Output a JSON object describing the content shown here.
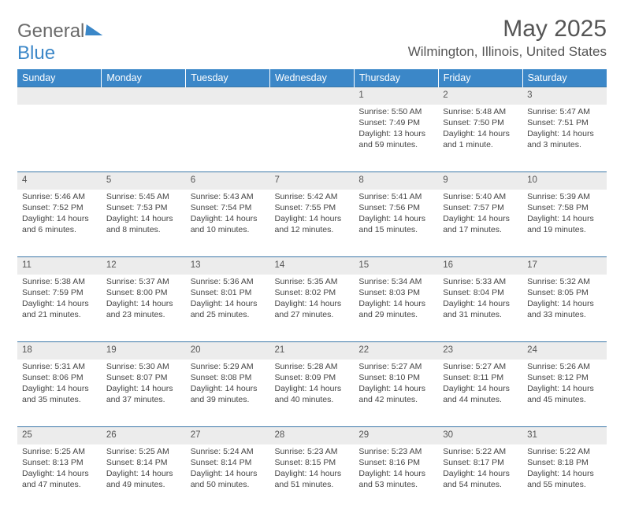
{
  "logo": {
    "part1": "General",
    "part2": "Blue"
  },
  "title": "May 2025",
  "location": "Wilmington, Illinois, United States",
  "header_bg": "#3b87c8",
  "daynum_bg": "#ececec",
  "row_border": "#3b77a8",
  "days": [
    "Sunday",
    "Monday",
    "Tuesday",
    "Wednesday",
    "Thursday",
    "Friday",
    "Saturday"
  ],
  "weeks": [
    [
      null,
      null,
      null,
      null,
      {
        "n": "1",
        "sr": "5:50 AM",
        "ss": "7:49 PM",
        "d": "13 hours and 59 minutes."
      },
      {
        "n": "2",
        "sr": "5:48 AM",
        "ss": "7:50 PM",
        "d": "14 hours and 1 minute."
      },
      {
        "n": "3",
        "sr": "5:47 AM",
        "ss": "7:51 PM",
        "d": "14 hours and 3 minutes."
      }
    ],
    [
      {
        "n": "4",
        "sr": "5:46 AM",
        "ss": "7:52 PM",
        "d": "14 hours and 6 minutes."
      },
      {
        "n": "5",
        "sr": "5:45 AM",
        "ss": "7:53 PM",
        "d": "14 hours and 8 minutes."
      },
      {
        "n": "6",
        "sr": "5:43 AM",
        "ss": "7:54 PM",
        "d": "14 hours and 10 minutes."
      },
      {
        "n": "7",
        "sr": "5:42 AM",
        "ss": "7:55 PM",
        "d": "14 hours and 12 minutes."
      },
      {
        "n": "8",
        "sr": "5:41 AM",
        "ss": "7:56 PM",
        "d": "14 hours and 15 minutes."
      },
      {
        "n": "9",
        "sr": "5:40 AM",
        "ss": "7:57 PM",
        "d": "14 hours and 17 minutes."
      },
      {
        "n": "10",
        "sr": "5:39 AM",
        "ss": "7:58 PM",
        "d": "14 hours and 19 minutes."
      }
    ],
    [
      {
        "n": "11",
        "sr": "5:38 AM",
        "ss": "7:59 PM",
        "d": "14 hours and 21 minutes."
      },
      {
        "n": "12",
        "sr": "5:37 AM",
        "ss": "8:00 PM",
        "d": "14 hours and 23 minutes."
      },
      {
        "n": "13",
        "sr": "5:36 AM",
        "ss": "8:01 PM",
        "d": "14 hours and 25 minutes."
      },
      {
        "n": "14",
        "sr": "5:35 AM",
        "ss": "8:02 PM",
        "d": "14 hours and 27 minutes."
      },
      {
        "n": "15",
        "sr": "5:34 AM",
        "ss": "8:03 PM",
        "d": "14 hours and 29 minutes."
      },
      {
        "n": "16",
        "sr": "5:33 AM",
        "ss": "8:04 PM",
        "d": "14 hours and 31 minutes."
      },
      {
        "n": "17",
        "sr": "5:32 AM",
        "ss": "8:05 PM",
        "d": "14 hours and 33 minutes."
      }
    ],
    [
      {
        "n": "18",
        "sr": "5:31 AM",
        "ss": "8:06 PM",
        "d": "14 hours and 35 minutes."
      },
      {
        "n": "19",
        "sr": "5:30 AM",
        "ss": "8:07 PM",
        "d": "14 hours and 37 minutes."
      },
      {
        "n": "20",
        "sr": "5:29 AM",
        "ss": "8:08 PM",
        "d": "14 hours and 39 minutes."
      },
      {
        "n": "21",
        "sr": "5:28 AM",
        "ss": "8:09 PM",
        "d": "14 hours and 40 minutes."
      },
      {
        "n": "22",
        "sr": "5:27 AM",
        "ss": "8:10 PM",
        "d": "14 hours and 42 minutes."
      },
      {
        "n": "23",
        "sr": "5:27 AM",
        "ss": "8:11 PM",
        "d": "14 hours and 44 minutes."
      },
      {
        "n": "24",
        "sr": "5:26 AM",
        "ss": "8:12 PM",
        "d": "14 hours and 45 minutes."
      }
    ],
    [
      {
        "n": "25",
        "sr": "5:25 AM",
        "ss": "8:13 PM",
        "d": "14 hours and 47 minutes."
      },
      {
        "n": "26",
        "sr": "5:25 AM",
        "ss": "8:14 PM",
        "d": "14 hours and 49 minutes."
      },
      {
        "n": "27",
        "sr": "5:24 AM",
        "ss": "8:14 PM",
        "d": "14 hours and 50 minutes."
      },
      {
        "n": "28",
        "sr": "5:23 AM",
        "ss": "8:15 PM",
        "d": "14 hours and 51 minutes."
      },
      {
        "n": "29",
        "sr": "5:23 AM",
        "ss": "8:16 PM",
        "d": "14 hours and 53 minutes."
      },
      {
        "n": "30",
        "sr": "5:22 AM",
        "ss": "8:17 PM",
        "d": "14 hours and 54 minutes."
      },
      {
        "n": "31",
        "sr": "5:22 AM",
        "ss": "8:18 PM",
        "d": "14 hours and 55 minutes."
      }
    ]
  ],
  "labels": {
    "sunrise": "Sunrise: ",
    "sunset": "Sunset: ",
    "daylight": "Daylight: "
  }
}
